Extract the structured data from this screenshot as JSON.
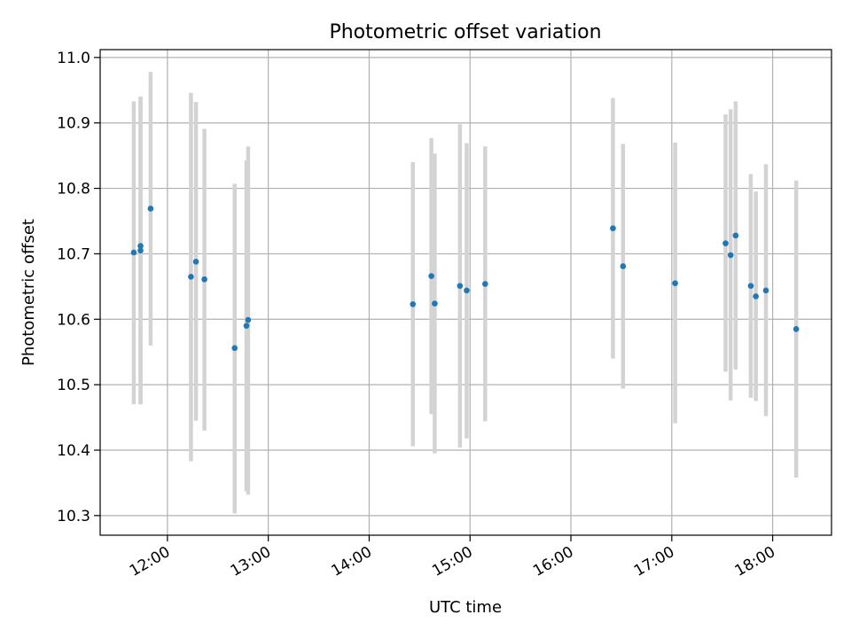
{
  "chart_data": {
    "type": "scatter",
    "title": "Photometric offset variation",
    "xlabel": "UTC time",
    "ylabel": "Photometric offset",
    "grid": true,
    "x_unit": "UTC clock time (hours, HH:MM)",
    "xlim": [
      "11:20",
      "18:35"
    ],
    "ylim": [
      10.27,
      11.012
    ],
    "xticks": [
      "12:00",
      "13:00",
      "14:00",
      "15:00",
      "16:00",
      "17:00",
      "18:00"
    ],
    "yticks": [
      "10.3",
      "10.4",
      "10.5",
      "10.6",
      "10.7",
      "10.8",
      "10.9",
      "11.0"
    ],
    "colors": {
      "point": "#1f77b4",
      "errorbar": "#d3d3d3",
      "grid": "#b0b0b0"
    },
    "series": [
      {
        "points": [
          {
            "t": "11:40",
            "y": 10.702,
            "lo": 10.47,
            "hi": 10.933
          },
          {
            "t": "11:44",
            "y": 10.705,
            "lo": 10.47,
            "hi": 10.94
          },
          {
            "t": "11:44",
            "y": 10.712,
            "lo": 10.47,
            "hi": 10.94
          },
          {
            "t": "11:50",
            "y": 10.769,
            "lo": 10.56,
            "hi": 10.978
          },
          {
            "t": "12:14",
            "y": 10.665,
            "lo": 10.383,
            "hi": 10.946
          },
          {
            "t": "12:17",
            "y": 10.688,
            "lo": 10.445,
            "hi": 10.932
          },
          {
            "t": "12:22",
            "y": 10.661,
            "lo": 10.43,
            "hi": 10.891
          },
          {
            "t": "12:40",
            "y": 10.556,
            "lo": 10.303,
            "hi": 10.807
          },
          {
            "t": "12:47",
            "y": 10.59,
            "lo": 10.337,
            "hi": 10.843
          },
          {
            "t": "12:48",
            "y": 10.599,
            "lo": 10.332,
            "hi": 10.864
          },
          {
            "t": "14:26",
            "y": 10.623,
            "lo": 10.406,
            "hi": 10.84
          },
          {
            "t": "14:37",
            "y": 10.666,
            "lo": 10.455,
            "hi": 10.877
          },
          {
            "t": "14:39",
            "y": 10.624,
            "lo": 10.395,
            "hi": 10.853
          },
          {
            "t": "14:54",
            "y": 10.651,
            "lo": 10.404,
            "hi": 10.898
          },
          {
            "t": "14:58",
            "y": 10.644,
            "lo": 10.418,
            "hi": 10.869
          },
          {
            "t": "15:09",
            "y": 10.654,
            "lo": 10.444,
            "hi": 10.864
          },
          {
            "t": "16:25",
            "y": 10.739,
            "lo": 10.54,
            "hi": 10.938
          },
          {
            "t": "16:31",
            "y": 10.681,
            "lo": 10.494,
            "hi": 10.868
          },
          {
            "t": "17:02",
            "y": 10.655,
            "lo": 10.441,
            "hi": 10.87
          },
          {
            "t": "17:32",
            "y": 10.716,
            "lo": 10.52,
            "hi": 10.913
          },
          {
            "t": "17:35",
            "y": 10.698,
            "lo": 10.476,
            "hi": 10.921
          },
          {
            "t": "17:38",
            "y": 10.728,
            "lo": 10.523,
            "hi": 10.933
          },
          {
            "t": "17:47",
            "y": 10.651,
            "lo": 10.48,
            "hi": 10.822
          },
          {
            "t": "17:50",
            "y": 10.635,
            "lo": 10.475,
            "hi": 10.795
          },
          {
            "t": "17:56",
            "y": 10.644,
            "lo": 10.452,
            "hi": 10.837
          },
          {
            "t": "18:14",
            "y": 10.585,
            "lo": 10.358,
            "hi": 10.812
          }
        ]
      }
    ]
  }
}
